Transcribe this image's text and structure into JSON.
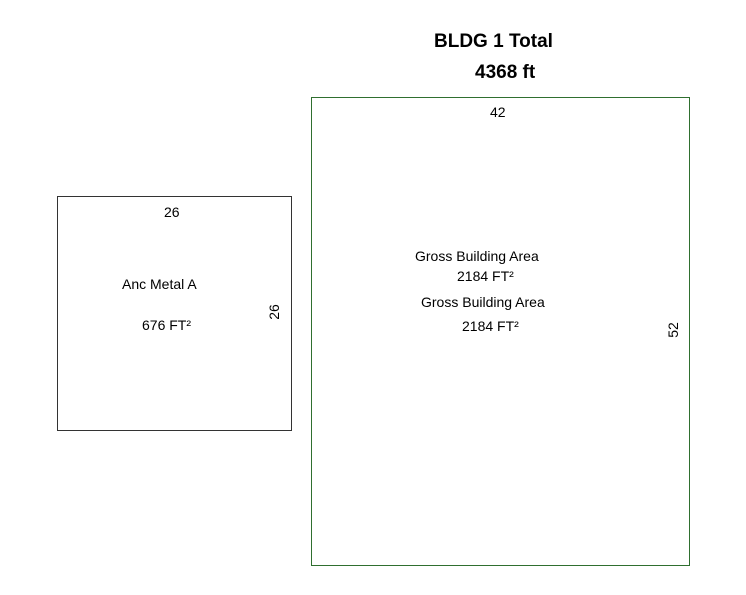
{
  "header": {
    "title": "BLDG 1 Total",
    "total": "4368 ft"
  },
  "colors": {
    "main_outline": "#2f6f2f",
    "anc_outline": "#333333"
  },
  "anc_area": {
    "label": "Anc Metal A",
    "area": "676 FT²",
    "top_dim": "26",
    "right_dim": "26"
  },
  "main_area": {
    "label1": "Gross Building Area",
    "area1": "2184 FT²",
    "label2": "Gross Building Area",
    "area2": "2184 FT²",
    "top_dim": "42",
    "right_dim": "52"
  }
}
